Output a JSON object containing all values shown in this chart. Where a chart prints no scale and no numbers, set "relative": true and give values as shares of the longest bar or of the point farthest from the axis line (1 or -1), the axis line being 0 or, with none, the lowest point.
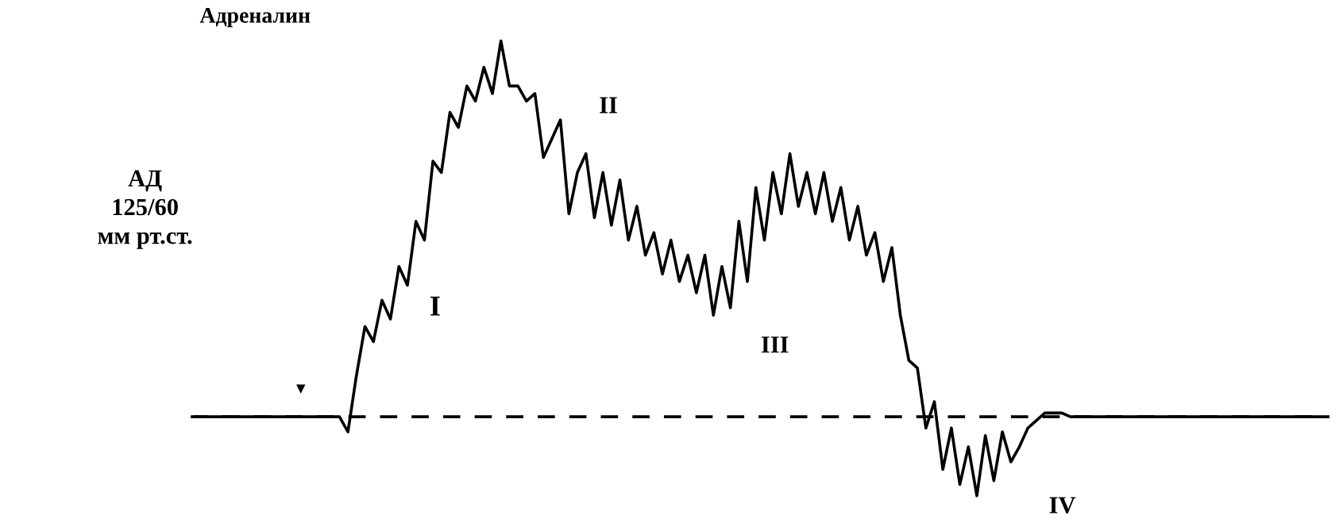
{
  "chart_data": {
    "type": "line",
    "relative": true,
    "line_style": "solid",
    "marker": "none",
    "categories": [
      null,
      null,
      null,
      null,
      null,
      null,
      null,
      null,
      null,
      null,
      null,
      null,
      null,
      null,
      null,
      null,
      null,
      null,
      null,
      null,
      null,
      null,
      null,
      null,
      null,
      null,
      null,
      null,
      null,
      null,
      null,
      null,
      null,
      null,
      null,
      null,
      null,
      null,
      null,
      null,
      null,
      null,
      null,
      null,
      null,
      null,
      null,
      null,
      null,
      null,
      null,
      null,
      null,
      null,
      null,
      null,
      null,
      null,
      null,
      null,
      null,
      null,
      null,
      null,
      null,
      null,
      null,
      null,
      null,
      null,
      null,
      null,
      null,
      null,
      null,
      null,
      null,
      null,
      null,
      null,
      null,
      null,
      null,
      null,
      null,
      null,
      null,
      null,
      null,
      null,
      null,
      null,
      null,
      null,
      null,
      null,
      null,
      null,
      null,
      null,
      null,
      null,
      null,
      null,
      null,
      null,
      null,
      null,
      null,
      null,
      null,
      null,
      null,
      null,
      null,
      null,
      null,
      null,
      null,
      null,
      null,
      null,
      null,
      null,
      null,
      null,
      null,
      null,
      null,
      null,
      null,
      null,
      null,
      null
    ],
    "series": [
      {
        "color": "#000000",
        "values": [
          0,
          0,
          0,
          0,
          0,
          0,
          0,
          0,
          0,
          0,
          0,
          0,
          0,
          0,
          0,
          0,
          0,
          0,
          -0.04,
          0.11,
          0.24,
          0.2,
          0.31,
          0.26,
          0.4,
          0.35,
          0.52,
          0.47,
          0.68,
          0.65,
          0.81,
          0.77,
          0.88,
          0.84,
          0.93,
          0.86,
          1.0,
          0.88,
          0.88,
          0.84,
          0.86,
          0.69,
          0.74,
          0.79,
          0.54,
          0.65,
          0.7,
          0.53,
          0.65,
          0.51,
          0.63,
          0.47,
          0.56,
          0.43,
          0.49,
          0.38,
          0.47,
          0.36,
          0.43,
          0.33,
          0.43,
          0.27,
          0.4,
          0.29,
          0.52,
          0.36,
          0.61,
          0.47,
          0.65,
          0.54,
          0.7,
          0.56,
          0.65,
          0.54,
          0.65,
          0.52,
          0.61,
          0.47,
          0.56,
          0.43,
          0.49,
          0.36,
          0.45,
          0.27,
          0.15,
          0.13,
          -0.03,
          0.04,
          -0.14,
          -0.03,
          -0.18,
          -0.08,
          -0.21,
          -0.05,
          -0.17,
          -0.04,
          -0.12,
          -0.08,
          -0.03,
          -0.01,
          0.01,
          0.01,
          0.01,
          0,
          0,
          0,
          0,
          0,
          0,
          0,
          0,
          0,
          0,
          0,
          0,
          0,
          0,
          0,
          0,
          0,
          0,
          0,
          0,
          0,
          0,
          0,
          0,
          0,
          0,
          0,
          0,
          0,
          0,
          0
        ]
      }
    ],
    "ref_lines": [
      {
        "axis": "y",
        "value": 0,
        "color": "#000000",
        "line_style": "dashed"
      }
    ],
    "annotations": [
      "Адреналин",
      "АД\n125/60\nмм рт.ст.",
      "▼",
      "I",
      "II",
      "III",
      "IV"
    ]
  }
}
